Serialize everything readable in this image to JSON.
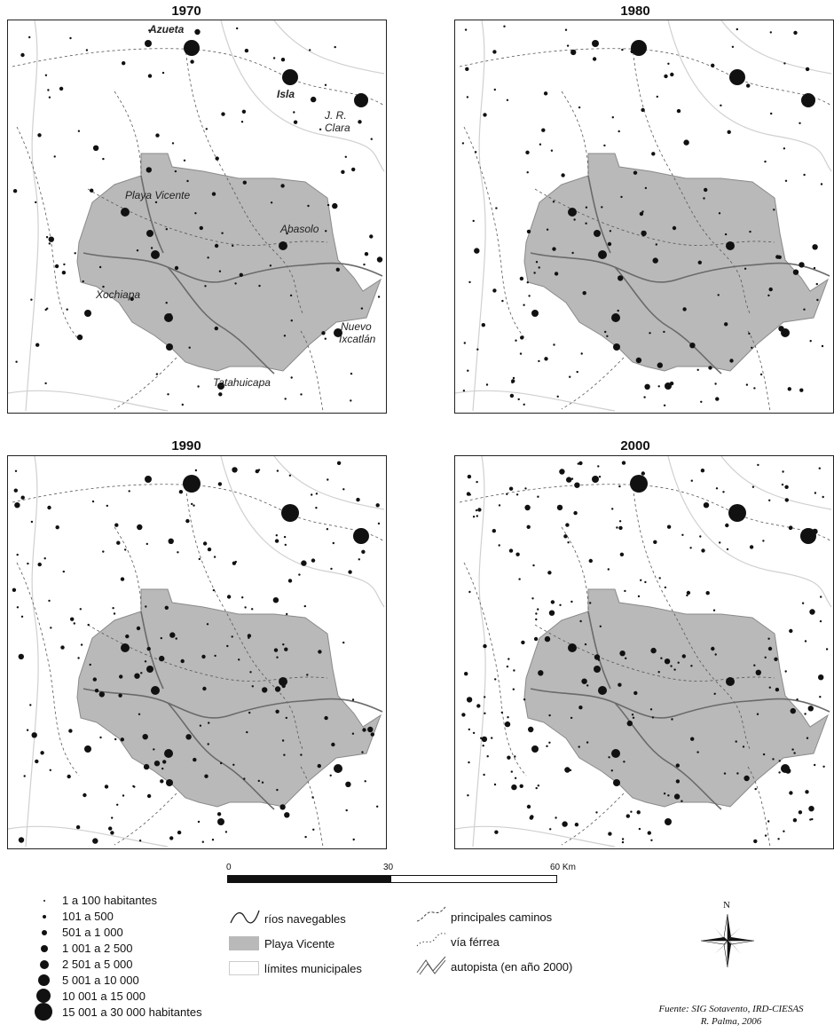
{
  "maps": [
    {
      "year": "1970",
      "labels": [
        "Azueta",
        "Isla",
        "J. R.",
        "Clara",
        "Playa Vicente",
        "Abasolo",
        "Xochiapa",
        "Nuevo",
        "Ixcatlán",
        "Tatahuicapa"
      ]
    },
    {
      "year": "1980",
      "labels": []
    },
    {
      "year": "1990",
      "labels": []
    },
    {
      "year": "2000",
      "labels": []
    }
  ],
  "scale": {
    "ticks": [
      "0",
      "30",
      "60 Km"
    ]
  },
  "legend_population": [
    "1 a 100 habitantes",
    "101 a 500",
    "501 a 1 000",
    "1 001 a 2 500",
    "2 501 a 5 000",
    "5 001 a 10 000",
    "10 001 a 15 000",
    "15 001 a 30 000 habitantes"
  ],
  "legend_features": {
    "rivers": "ríos navegables",
    "region": "Playa Vicente",
    "municipal_limits": "límites municipales",
    "roads": "principales caminos",
    "railway": "vía férrea",
    "highway": "autopista (en año 2000)"
  },
  "north_label": "N",
  "source": {
    "line1": "Fuente: SIG Sotavento, IRD-CIESAS",
    "line2": "R. Palma, 2006"
  },
  "colors": {
    "region_fill": "#b9b9b9",
    "river": "#6a6a6a",
    "dot": "#111111"
  }
}
